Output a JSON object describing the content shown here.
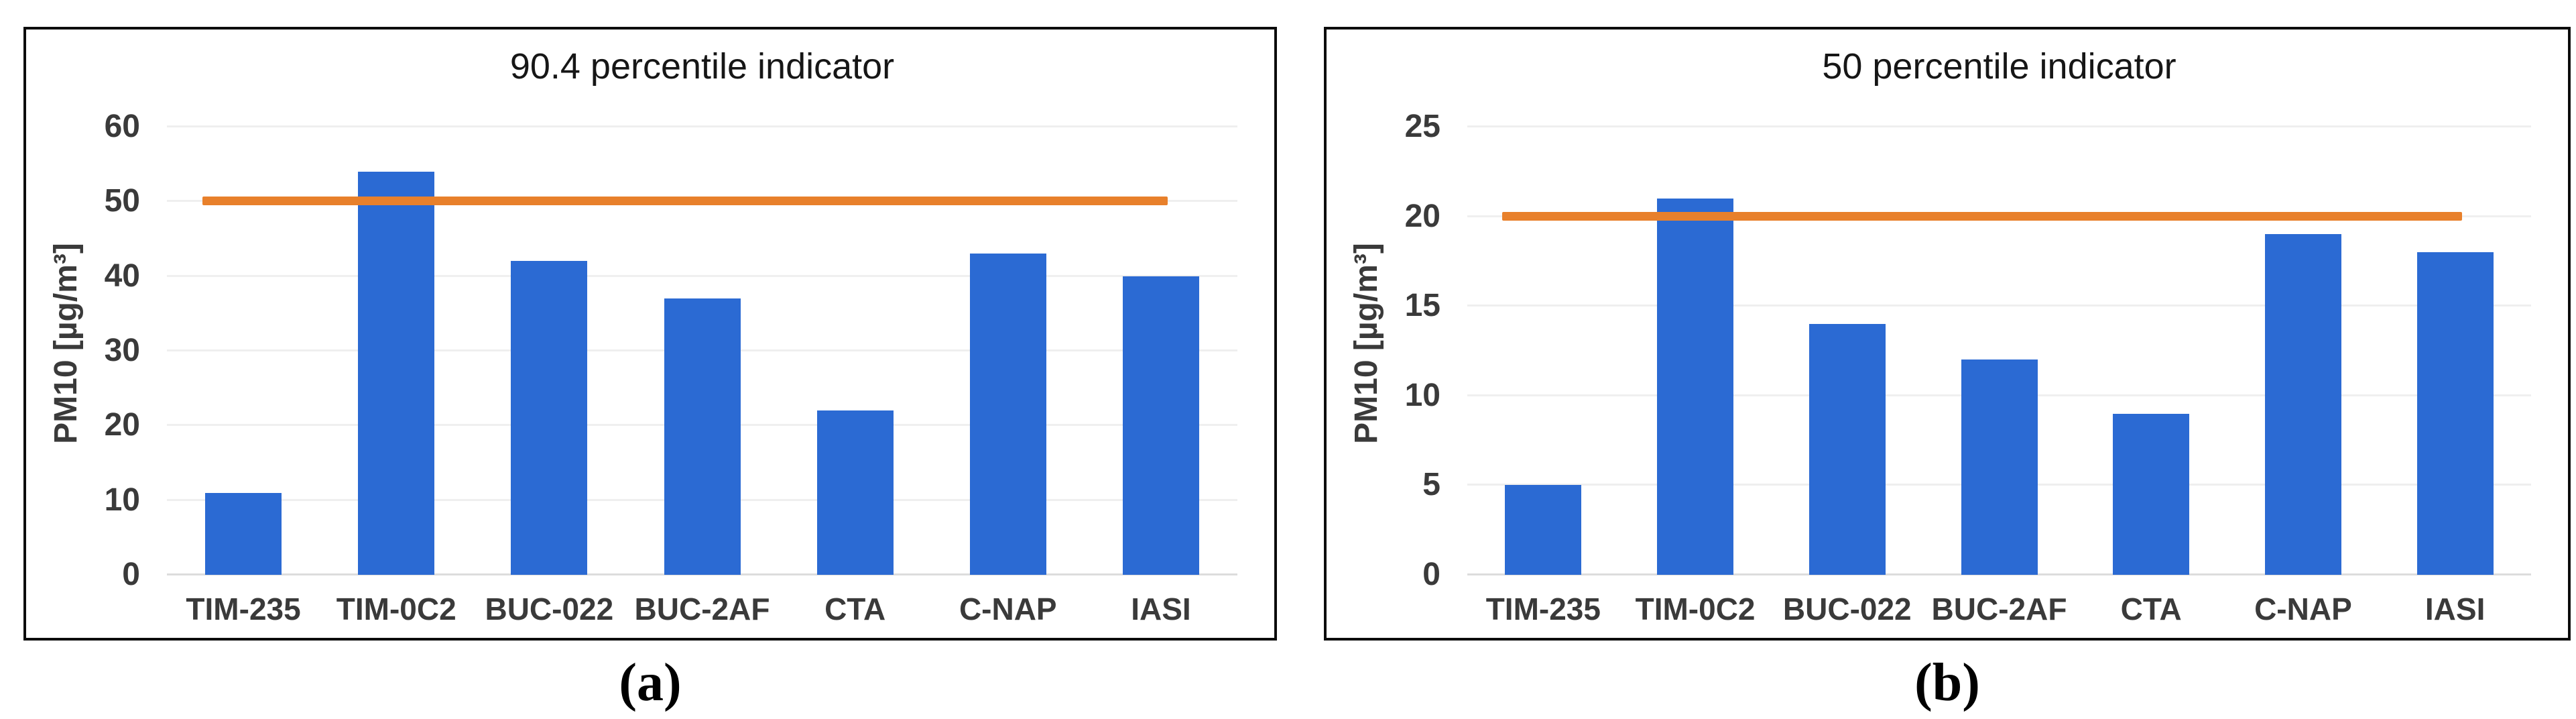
{
  "figure": {
    "captions": {
      "a": "(a)",
      "b": "(b)"
    }
  },
  "colors": {
    "bar": "#2b6ad3",
    "limit_line": "#e8802b",
    "gridline": "#efefef",
    "zero_line": "#dcdcdc",
    "panel_border": "#0c0c0c",
    "title_text": "#161616",
    "axis_text": "#3a3a3a"
  },
  "chart_data": [
    {
      "type": "bar",
      "title": "90.4 percentile indicator",
      "ylabel": "PM10 [µg/m³]",
      "xlabel": "",
      "categories": [
        "TIM-235",
        "TIM-0C2",
        "BUC-022",
        "BUC-2AF",
        "CTA",
        "C-NAP",
        "IASI"
      ],
      "values": [
        11,
        54,
        42,
        37,
        22,
        43,
        40
      ],
      "ylim": [
        0,
        60
      ],
      "yticks": [
        0,
        10,
        20,
        30,
        40,
        50,
        60
      ],
      "limit_line_value": 50,
      "grid": true,
      "legend": false
    },
    {
      "type": "bar",
      "title": "50 percentile indicator",
      "ylabel": "PM10 [µg/m³]",
      "xlabel": "",
      "categories": [
        "TIM-235",
        "TIM-0C2",
        "BUC-022",
        "BUC-2AF",
        "CTA",
        "C-NAP",
        "IASI"
      ],
      "values": [
        5,
        21,
        14,
        12,
        9,
        19,
        18
      ],
      "ylim": [
        0,
        25
      ],
      "yticks": [
        0,
        5,
        10,
        15,
        20,
        25
      ],
      "limit_line_value": 20,
      "grid": true,
      "legend": false
    }
  ]
}
